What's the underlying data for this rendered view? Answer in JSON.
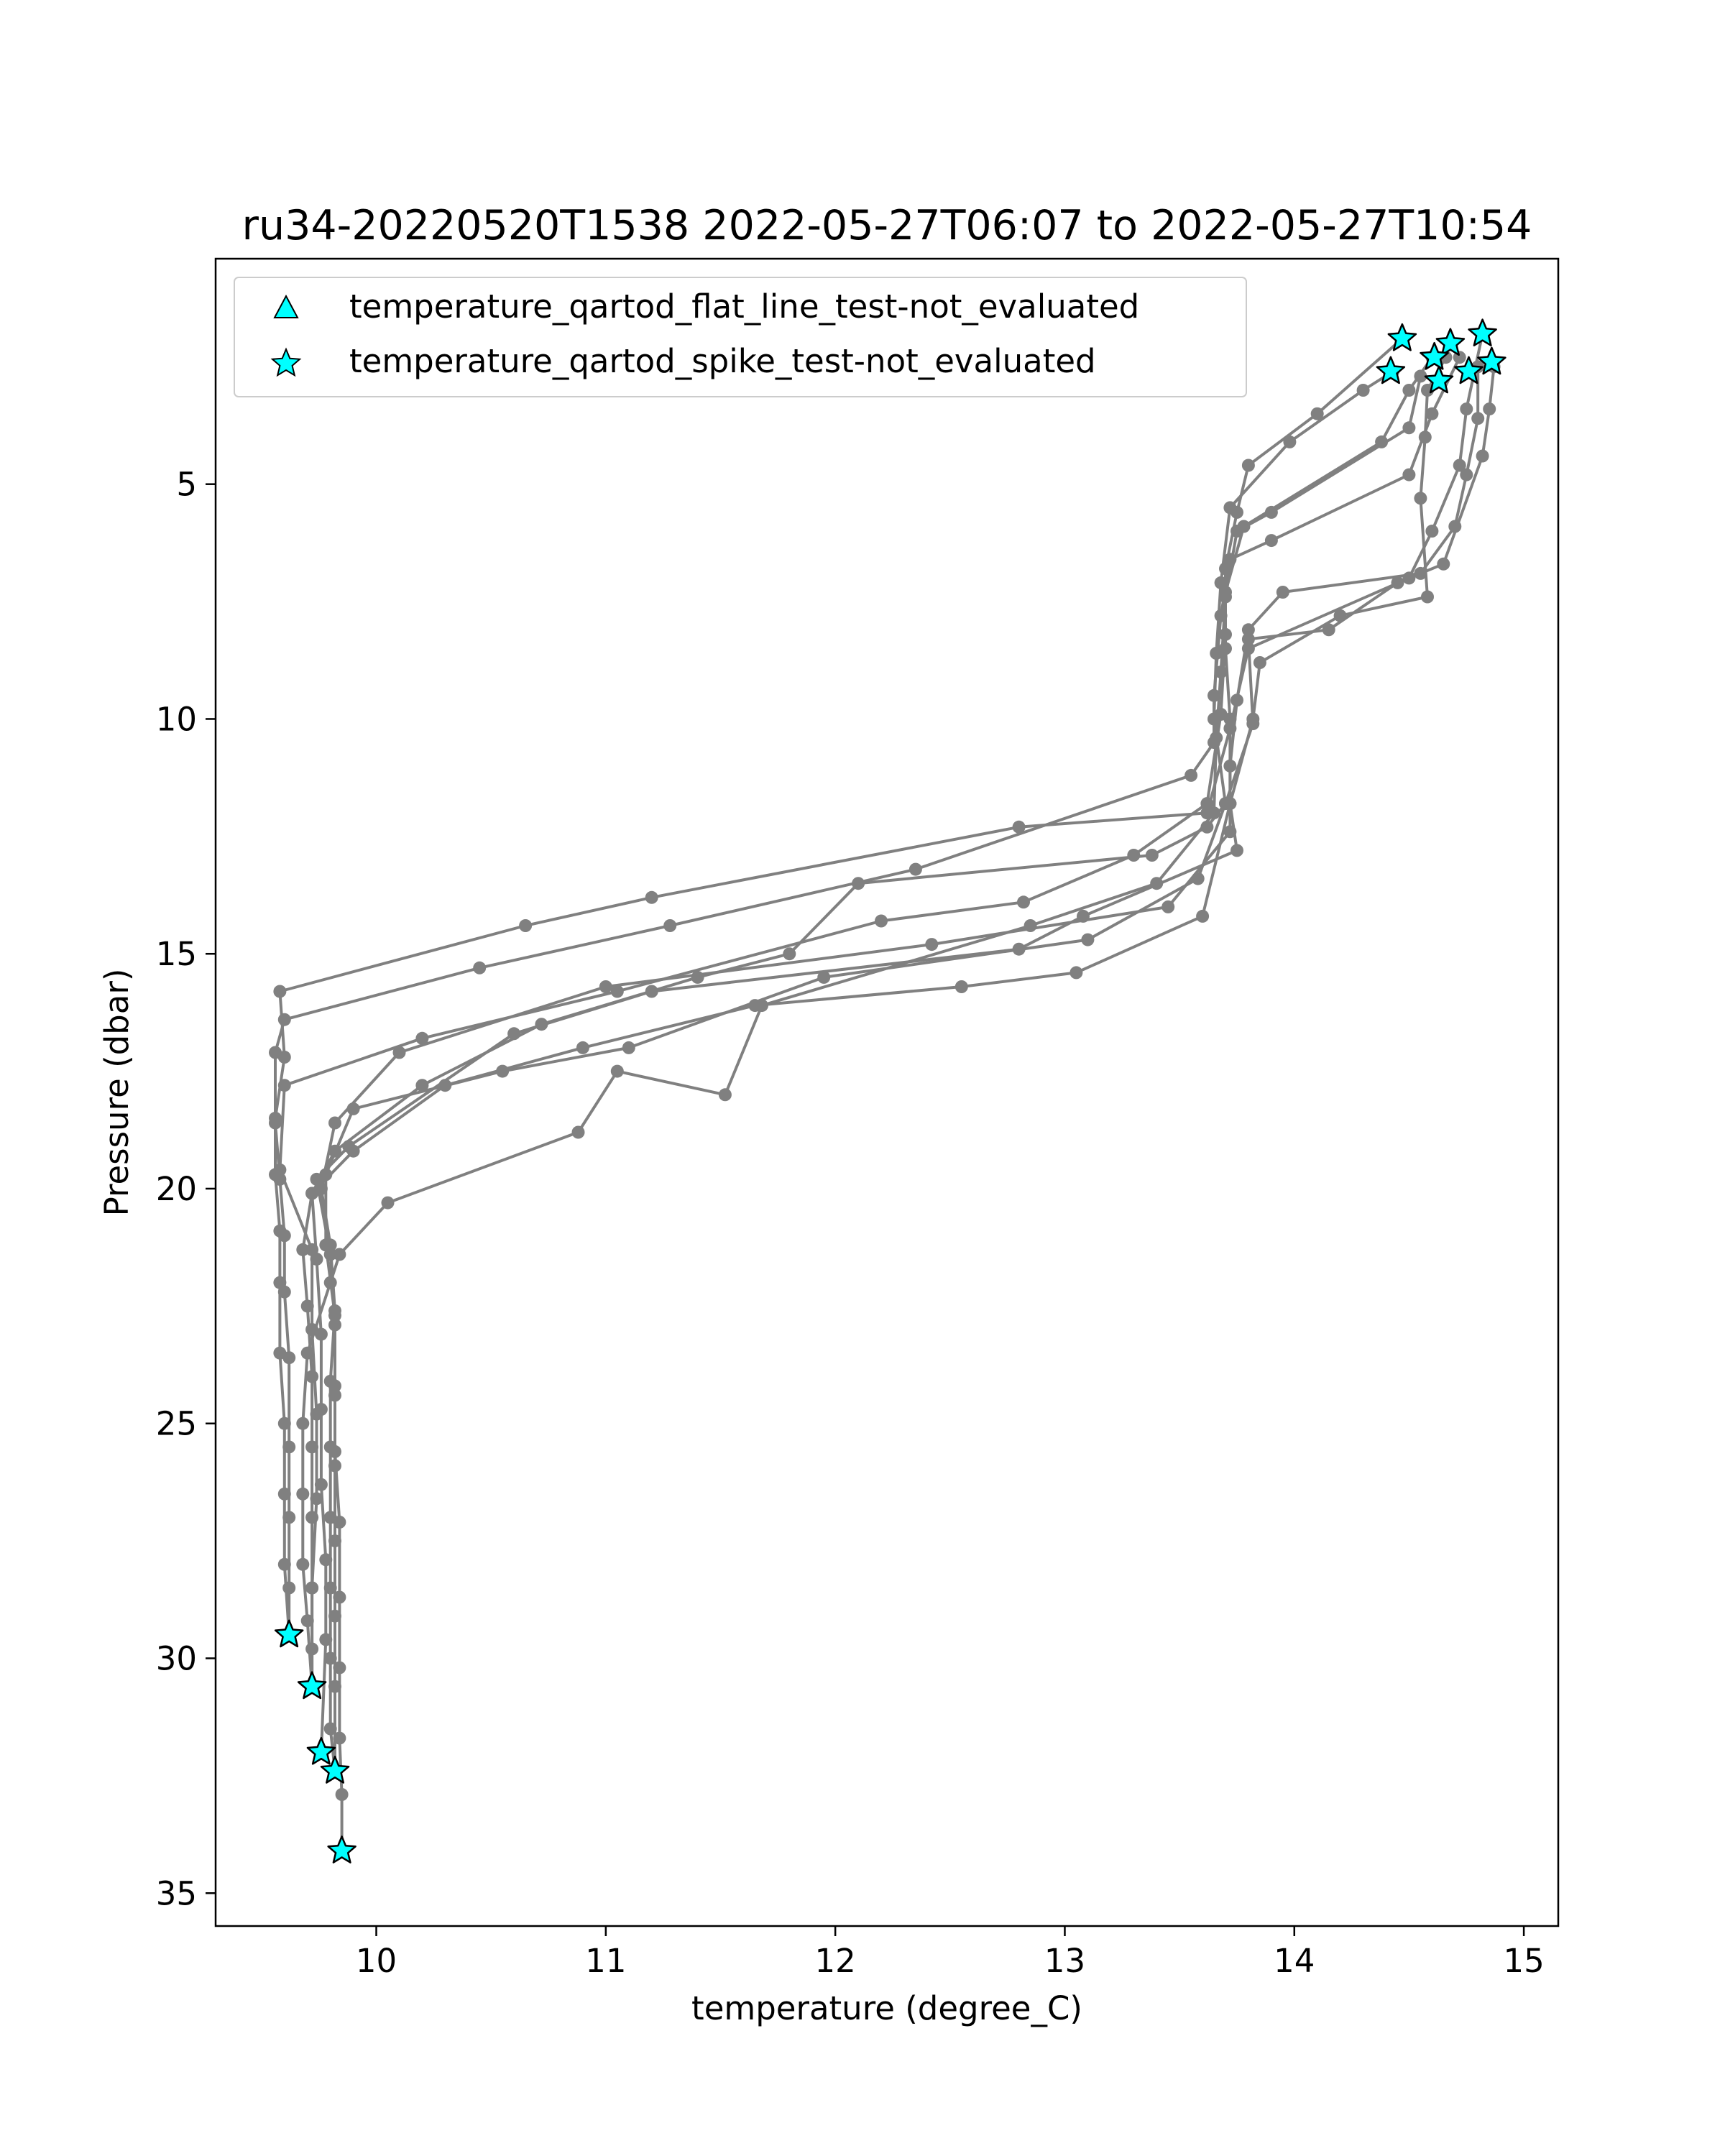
{
  "chart_data": {
    "type": "scatter",
    "title": "ru34-20220520T1538 2022-05-27T06:07 to 2022-05-27T10:54",
    "xlabel": "temperature (degree_C)",
    "ylabel": "Pressure (dbar)",
    "xlim": [
      9.3,
      15.15
    ],
    "ylim": [
      35.7,
      0.2
    ],
    "y_inverted": true,
    "x_ticks": [
      10,
      11,
      12,
      13,
      14,
      15
    ],
    "y_ticks": [
      5,
      10,
      15,
      20,
      25,
      30,
      35
    ],
    "grid": false,
    "legend_position": "top-left",
    "colors": {
      "profile_line": "#808080",
      "flag_marker": "#00ffff",
      "flag_edge": "#000000"
    },
    "legend": [
      {
        "label": "temperature_qartod_flat_line_test-not_evaluated",
        "marker": "triangle"
      },
      {
        "label": "temperature_qartod_spike_test-not_evaluated",
        "marker": "star"
      }
    ],
    "series": [
      {
        "points": [
          [
            14.82,
            1.8
          ],
          [
            14.75,
            3.4
          ],
          [
            14.72,
            4.6
          ],
          [
            14.6,
            6.0
          ],
          [
            14.5,
            7.0
          ],
          [
            13.8,
            8.5
          ],
          [
            13.72,
            10.2
          ],
          [
            13.62,
            12.0
          ],
          [
            12.8,
            12.3
          ],
          [
            11.2,
            13.8
          ],
          [
            10.65,
            14.4
          ],
          [
            9.58,
            15.8
          ],
          [
            9.6,
            17.2
          ],
          [
            9.56,
            18.5
          ],
          [
            9.56,
            19.7
          ],
          [
            9.58,
            20.9
          ],
          [
            9.58,
            22.0
          ],
          [
            9.58,
            23.5
          ],
          [
            9.6,
            25.0
          ],
          [
            9.6,
            26.5
          ],
          [
            9.6,
            28.0
          ],
          [
            9.62,
            29.5
          ]
        ]
      },
      {
        "points": [
          [
            14.72,
            2.3
          ],
          [
            14.6,
            3.5
          ],
          [
            14.5,
            4.8
          ],
          [
            13.9,
            6.2
          ],
          [
            13.72,
            6.6
          ],
          [
            13.68,
            7.8
          ],
          [
            13.65,
            9.5
          ],
          [
            13.65,
            10.5
          ],
          [
            13.55,
            11.2
          ],
          [
            12.35,
            13.2
          ],
          [
            11.28,
            14.4
          ],
          [
            10.45,
            15.3
          ],
          [
            9.6,
            16.4
          ],
          [
            9.56,
            17.1
          ],
          [
            9.56,
            18.6
          ],
          [
            9.58,
            19.8
          ],
          [
            9.6,
            21.0
          ],
          [
            9.6,
            22.2
          ],
          [
            9.62,
            23.6
          ],
          [
            9.62,
            25.5
          ],
          [
            9.62,
            27.0
          ],
          [
            9.62,
            28.5
          ],
          [
            9.62,
            29.5
          ]
        ]
      },
      {
        "points": [
          [
            14.47,
            1.9
          ],
          [
            14.1,
            3.5
          ],
          [
            13.8,
            4.6
          ],
          [
            13.75,
            5.6
          ],
          [
            13.7,
            6.8
          ],
          [
            13.7,
            8.2
          ],
          [
            13.68,
            9.9
          ],
          [
            13.62,
            11.8
          ],
          [
            13.3,
            12.9
          ],
          [
            12.82,
            13.9
          ],
          [
            12.2,
            14.3
          ],
          [
            11.05,
            15.8
          ],
          [
            10.2,
            16.8
          ],
          [
            9.6,
            17.8
          ],
          [
            9.58,
            19.6
          ],
          [
            9.72,
            21.3
          ],
          [
            9.72,
            23.0
          ],
          [
            9.74,
            24.8
          ],
          [
            9.74,
            26.6
          ],
          [
            9.72,
            28.5
          ],
          [
            9.72,
            30.6
          ]
        ]
      },
      {
        "points": [
          [
            14.43,
            2.6
          ],
          [
            14.3,
            3.0
          ],
          [
            13.98,
            4.1
          ],
          [
            13.72,
            5.5
          ],
          [
            13.68,
            7.1
          ],
          [
            13.66,
            8.6
          ],
          [
            13.65,
            10.0
          ],
          [
            13.7,
            11.8
          ],
          [
            13.62,
            12.3
          ],
          [
            13.38,
            12.9
          ],
          [
            12.1,
            13.5
          ],
          [
            11.8,
            15.0
          ],
          [
            11.4,
            15.5
          ],
          [
            10.72,
            16.5
          ],
          [
            10.2,
            17.8
          ],
          [
            9.82,
            19.2
          ],
          [
            9.72,
            20.1
          ],
          [
            9.74,
            21.5
          ],
          [
            9.76,
            23.1
          ],
          [
            9.76,
            24.7
          ],
          [
            9.76,
            26.3
          ],
          [
            9.78,
            27.9
          ],
          [
            9.78,
            29.6
          ],
          [
            9.76,
            32.0
          ]
        ]
      },
      {
        "points": [
          [
            14.6,
            2.3
          ],
          [
            14.5,
            3.0
          ],
          [
            14.38,
            4.1
          ],
          [
            13.78,
            5.9
          ],
          [
            13.7,
            7.3
          ],
          [
            13.7,
            8.5
          ],
          [
            13.72,
            10.0
          ],
          [
            13.72,
            11.8
          ],
          [
            13.75,
            12.8
          ],
          [
            13.08,
            14.2
          ],
          [
            12.8,
            14.9
          ],
          [
            11.2,
            15.8
          ],
          [
            10.6,
            16.7
          ],
          [
            9.88,
            19.1
          ],
          [
            9.74,
            19.8
          ],
          [
            9.8,
            21.4
          ],
          [
            9.82,
            22.9
          ],
          [
            9.82,
            24.4
          ],
          [
            9.82,
            25.9
          ],
          [
            9.82,
            27.5
          ],
          [
            9.82,
            29.1
          ],
          [
            9.82,
            30.6
          ],
          [
            9.82,
            32.4
          ]
        ]
      },
      {
        "points": [
          [
            14.8,
            2.5
          ],
          [
            14.8,
            3.6
          ],
          [
            14.75,
            4.8
          ],
          [
            14.7,
            5.9
          ],
          [
            14.55,
            6.9
          ],
          [
            13.95,
            7.3
          ],
          [
            13.8,
            8.1
          ],
          [
            13.75,
            9.6
          ],
          [
            13.72,
            11.0
          ],
          [
            13.72,
            12.4
          ],
          [
            13.45,
            14.0
          ],
          [
            12.42,
            14.8
          ],
          [
            11.0,
            15.7
          ],
          [
            10.1,
            17.1
          ],
          [
            9.82,
            18.6
          ],
          [
            9.76,
            20.0
          ],
          [
            9.8,
            21.2
          ],
          [
            9.82,
            22.6
          ],
          [
            9.8,
            24.1
          ],
          [
            9.8,
            25.5
          ],
          [
            9.8,
            27.0
          ],
          [
            9.8,
            28.5
          ],
          [
            9.8,
            30.0
          ],
          [
            9.8,
            31.5
          ],
          [
            9.82,
            32.4
          ]
        ]
      },
      {
        "points": [
          [
            14.87,
            2.5
          ],
          [
            14.85,
            3.4
          ],
          [
            14.82,
            4.4
          ],
          [
            14.65,
            6.7
          ],
          [
            14.45,
            7.1
          ],
          [
            14.15,
            8.1
          ],
          [
            13.8,
            8.3
          ],
          [
            13.82,
            10.1
          ],
          [
            13.7,
            11.8
          ],
          [
            13.58,
            13.4
          ],
          [
            13.1,
            14.7
          ],
          [
            11.95,
            15.5
          ],
          [
            11.1,
            17.0
          ],
          [
            10.55,
            17.5
          ],
          [
            9.9,
            18.3
          ],
          [
            9.78,
            19.7
          ],
          [
            9.78,
            21.2
          ],
          [
            9.82,
            22.7
          ],
          [
            9.82,
            24.2
          ],
          [
            9.82,
            25.6
          ],
          [
            9.84,
            27.1
          ],
          [
            9.84,
            28.7
          ],
          [
            9.84,
            30.2
          ],
          [
            9.84,
            31.7
          ],
          [
            9.85,
            32.9
          ],
          [
            9.85,
            34.1
          ]
        ]
      },
      {
        "points": [
          [
            14.66,
            2.3
          ],
          [
            14.58,
            3.0
          ],
          [
            14.57,
            4.0
          ],
          [
            14.55,
            5.3
          ],
          [
            14.58,
            7.4
          ],
          [
            14.2,
            7.8
          ],
          [
            13.85,
            8.8
          ],
          [
            13.82,
            10.0
          ],
          [
            13.72,
            11.8
          ],
          [
            13.6,
            14.2
          ],
          [
            13.05,
            15.4
          ],
          [
            12.55,
            15.7
          ],
          [
            11.65,
            16.1
          ],
          [
            10.9,
            17.0
          ],
          [
            10.3,
            17.8
          ],
          [
            9.9,
            19.2
          ],
          [
            9.72,
            20.1
          ],
          [
            9.68,
            21.3
          ],
          [
            9.7,
            22.5
          ],
          [
            9.72,
            24.0
          ],
          [
            9.72,
            25.5
          ],
          [
            9.72,
            27.0
          ],
          [
            9.72,
            28.5
          ],
          [
            9.72,
            29.8
          ],
          [
            9.72,
            30.6
          ]
        ]
      },
      {
        "points": [
          [
            14.55,
            2.7
          ],
          [
            14.5,
            3.8
          ],
          [
            13.9,
            5.6
          ],
          [
            13.75,
            6.0
          ],
          [
            13.7,
            7.4
          ],
          [
            13.68,
            9.0
          ],
          [
            13.66,
            10.4
          ],
          [
            13.65,
            12.0
          ],
          [
            13.4,
            13.5
          ],
          [
            12.85,
            14.4
          ],
          [
            11.68,
            16.1
          ],
          [
            11.52,
            18.0
          ],
          [
            11.05,
            17.5
          ],
          [
            10.88,
            18.8
          ],
          [
            10.05,
            20.3
          ],
          [
            9.84,
            21.4
          ],
          [
            9.8,
            22.0
          ],
          [
            9.7,
            23.5
          ],
          [
            9.68,
            25.0
          ],
          [
            9.68,
            26.5
          ],
          [
            9.68,
            28.0
          ],
          [
            9.7,
            29.2
          ],
          [
            9.72,
            30.6
          ]
        ]
      }
    ],
    "flag_markers": [
      {
        "legend": "temperature_qartod_spike_test-not_evaluated",
        "points": [
          [
            14.82,
            1.8
          ],
          [
            14.47,
            1.9
          ],
          [
            14.68,
            2.0
          ],
          [
            14.61,
            2.3
          ],
          [
            14.86,
            2.4
          ],
          [
            14.76,
            2.6
          ],
          [
            14.42,
            2.6
          ],
          [
            14.63,
            2.8
          ],
          [
            9.62,
            29.5
          ],
          [
            9.72,
            30.6
          ],
          [
            9.76,
            32.0
          ],
          [
            9.82,
            32.4
          ],
          [
            9.85,
            34.1
          ]
        ]
      }
    ]
  }
}
